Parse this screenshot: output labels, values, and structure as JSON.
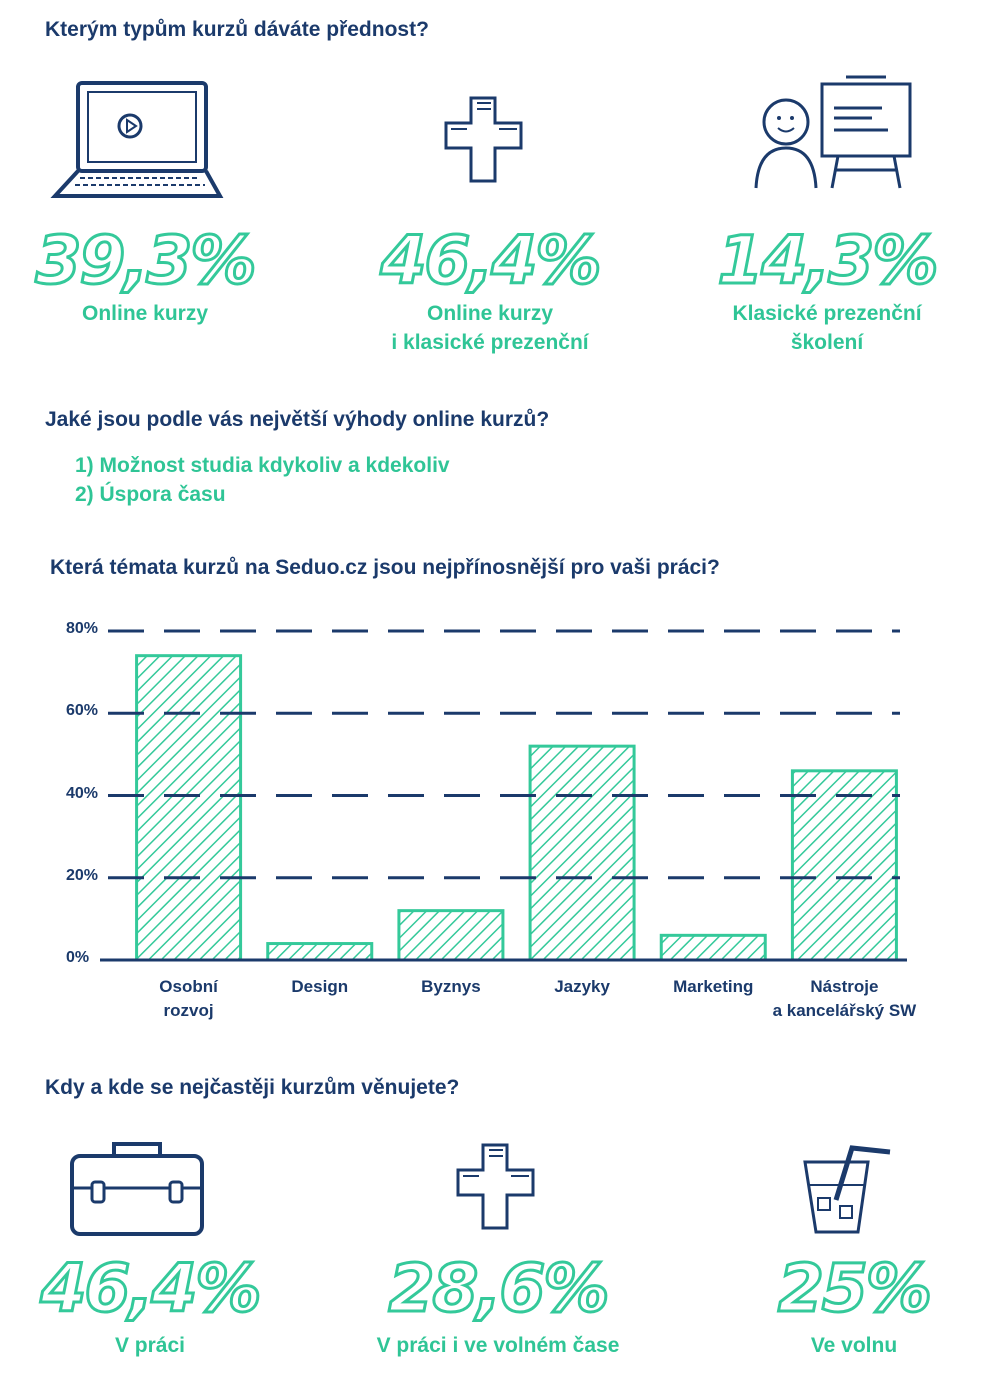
{
  "section1": {
    "question": "Kterým typům kurzů dáváte přednost?",
    "items": [
      {
        "icon": "laptop-icon",
        "value": "39,3%",
        "label1": "Online kurzy",
        "label2": ""
      },
      {
        "icon": "plus-icon",
        "value": "46,4%",
        "label1": "Online kurzy",
        "label2": "i klasické prezenční"
      },
      {
        "icon": "presenter-icon",
        "value": "14,3%",
        "label1": "Klasické prezenční",
        "label2": "školení"
      }
    ]
  },
  "section2": {
    "question": "Jaké jsou podle vás největší výhody online kurzů?",
    "items": [
      "1) Možnost studia kdykoliv a kdekoliv",
      "2) Úspora času"
    ]
  },
  "chart_data": {
    "type": "bar",
    "title": "Která témata kurzů na Seduo.cz jsou nejpřínosnější pro vaši práci?",
    "categories": [
      "Osobní rozvoj",
      "Design",
      "Byznys",
      "Jazyky",
      "Marketing",
      "Nástroje a kancelářský SW"
    ],
    "category_lines": [
      [
        "Osobní",
        "rozvoj"
      ],
      [
        "Design",
        ""
      ],
      [
        "Byznys",
        ""
      ],
      [
        "Jazyky",
        ""
      ],
      [
        "Marketing",
        ""
      ],
      [
        "Nástroje",
        "a kancelářský SW"
      ]
    ],
    "values": [
      74,
      4,
      12,
      52,
      6,
      46
    ],
    "ylim": [
      0,
      80
    ],
    "yticks": [
      0,
      20,
      40,
      60,
      80
    ],
    "ytick_labels": [
      "0%",
      "20%",
      "40%",
      "60%",
      "80%"
    ],
    "grid": true,
    "xlabel": "",
    "ylabel": "",
    "colors": {
      "bar": "#34c99a",
      "grid": "#1b3a6b"
    }
  },
  "section4": {
    "question": "Kdy a kde se nejčastěji kurzům věnujete?",
    "items": [
      {
        "icon": "briefcase-icon",
        "value": "46,4%",
        "label": "V práci"
      },
      {
        "icon": "plus-icon",
        "value": "28,6%",
        "label": "V práci i ve volném čase"
      },
      {
        "icon": "drink-icon",
        "value": "25%",
        "label": "Ve volnu"
      }
    ]
  }
}
